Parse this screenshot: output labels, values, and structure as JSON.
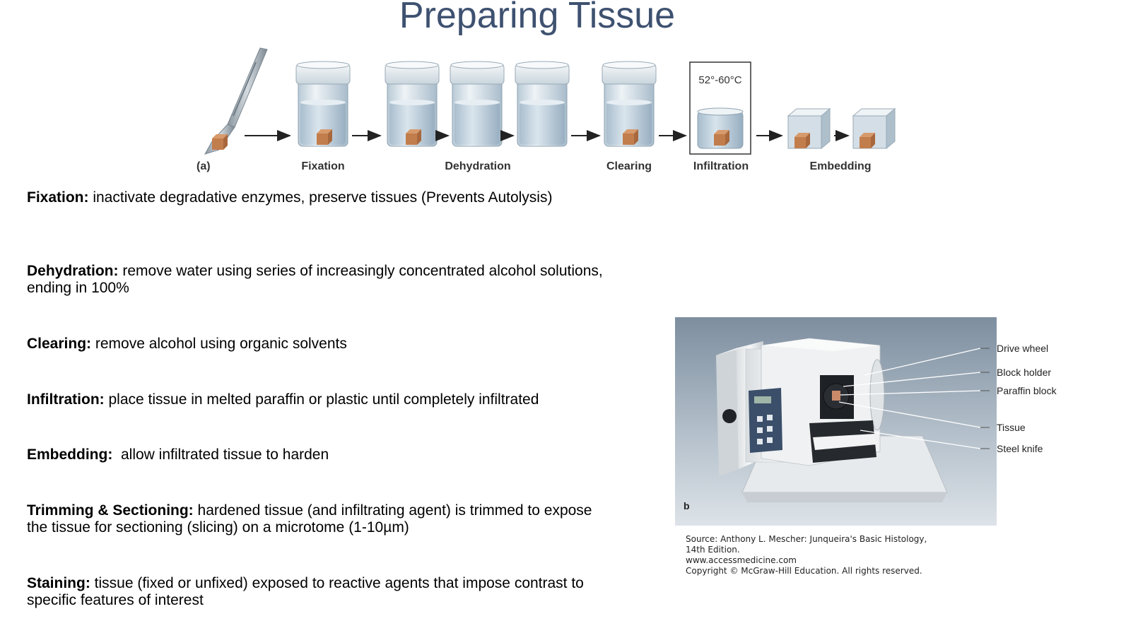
{
  "title": "Preparing Tissue",
  "process": {
    "step_a": "(a)",
    "fixation": "Fixation",
    "dehydration": "Dehydration",
    "clearing": "Clearing",
    "infiltration": "Infiltration",
    "embedding": "Embedding",
    "temperature": "52°-60°C"
  },
  "definitions": [
    {
      "term": "Fixation:",
      "text": " inactivate degradative enzymes, preserve tissues (Prevents Autolysis)"
    },
    {
      "term": "Dehydration:",
      "text": " remove water using series of increasingly concentrated alcohol solutions, ending in 100%"
    },
    {
      "term": "Clearing:",
      "text": " remove alcohol using organic solvents"
    },
    {
      "term": "Infiltration:",
      "text": " place tissue in melted paraffin or plastic until completely infiltrated"
    },
    {
      "term": "Embedding:",
      "text": "  allow infiltrated tissue to harden"
    },
    {
      "term": "Trimming & Sectioning:",
      "text": " hardened tissue (and infiltrating agent) is trimmed to expose the tissue for sectioning (slicing) on a microtome (1-10µm)"
    },
    {
      "term": "Staining:",
      "text": " tissue (fixed or unfixed) exposed to reactive agents that impose contrast to specific features of interest"
    }
  ],
  "microtome": {
    "panel": "b",
    "labels": {
      "drive_wheel": "Drive wheel",
      "block_holder": "Block holder",
      "paraffin_block": "Paraffin block",
      "tissue": "Tissue",
      "steel_knife": "Steel knife"
    }
  },
  "source": {
    "line1": "Source: Anthony L. Mescher: Junqueira's Basic Histology,",
    "line2": "14th Edition.",
    "line3": "www.accessmedicine.com",
    "line4": "Copyright © McGraw-Hill Education. All rights reserved."
  }
}
